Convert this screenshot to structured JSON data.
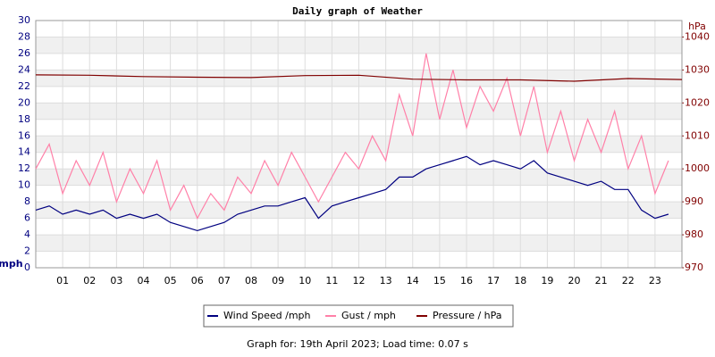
{
  "chart_data": {
    "type": "line",
    "title": "Daily graph of Weather",
    "ylabel": "mph",
    "y2label": "hPa",
    "footer": "Graph for: 19th April 2023; Load time: 0.07 s",
    "xlim": [
      0,
      24
    ],
    "xticks": [
      {
        "value": 1,
        "label": "01"
      },
      {
        "value": 2,
        "label": "02"
      },
      {
        "value": 3,
        "label": "03"
      },
      {
        "value": 4,
        "label": "04"
      },
      {
        "value": 5,
        "label": "05"
      },
      {
        "value": 6,
        "label": "06"
      },
      {
        "value": 7,
        "label": "07"
      },
      {
        "value": 8,
        "label": "08"
      },
      {
        "value": 9,
        "label": "09"
      },
      {
        "value": 10,
        "label": "10"
      },
      {
        "value": 11,
        "label": "11"
      },
      {
        "value": 12,
        "label": "12"
      },
      {
        "value": 13,
        "label": "13"
      },
      {
        "value": 14,
        "label": "14"
      },
      {
        "value": 15,
        "label": "15"
      },
      {
        "value": 16,
        "label": "16"
      },
      {
        "value": 17,
        "label": "17"
      },
      {
        "value": 18,
        "label": "18"
      },
      {
        "value": 19,
        "label": "19"
      },
      {
        "value": 20,
        "label": "20"
      },
      {
        "value": 21,
        "label": "21"
      },
      {
        "value": 22,
        "label": "22"
      },
      {
        "value": 23,
        "label": "23"
      }
    ],
    "ylim": [
      0,
      30
    ],
    "yticks": [
      0,
      2,
      4,
      6,
      8,
      10,
      12,
      14,
      16,
      18,
      20,
      22,
      24,
      26,
      28,
      30
    ],
    "y2lim": [
      970,
      1045
    ],
    "y2ticks": [
      970,
      980,
      990,
      1000,
      1010,
      1020,
      1030,
      1040
    ],
    "grid": true,
    "series": [
      {
        "name": "Gust / mph",
        "color": "#ff80a8",
        "x": [
          0,
          0.5,
          1,
          1.5,
          2,
          2.5,
          3,
          3.5,
          4,
          4.5,
          5,
          5.5,
          6,
          6.5,
          7,
          7.5,
          8,
          8.5,
          9,
          9.5,
          10,
          10.5,
          11,
          11.5,
          12,
          12.5,
          13,
          13.5,
          14,
          14.5,
          15,
          15.5,
          16,
          16.5,
          17,
          17.5,
          18,
          18.5,
          19,
          19.5,
          20,
          20.5,
          21,
          21.5,
          22,
          22.5,
          23,
          23.5
        ],
        "values": [
          12,
          15,
          9,
          13,
          10,
          14,
          8,
          12,
          9,
          13,
          7,
          10,
          6,
          9,
          7,
          11,
          9,
          13,
          10,
          14,
          11,
          8,
          11,
          14,
          12,
          16,
          13,
          21,
          16,
          26,
          18,
          24,
          17,
          22,
          19,
          23,
          16,
          22,
          14,
          19,
          13,
          18,
          14,
          19,
          12,
          16,
          9,
          13
        ]
      },
      {
        "name": "Wind Speed /mph",
        "color": "#000080",
        "x": [
          0,
          0.5,
          1,
          1.5,
          2,
          2.5,
          3,
          3.5,
          4,
          4.5,
          5,
          5.5,
          6,
          6.5,
          7,
          7.5,
          8,
          8.5,
          9,
          9.5,
          10,
          10.5,
          11,
          11.5,
          12,
          12.5,
          13,
          13.5,
          14,
          14.5,
          15,
          15.5,
          16,
          16.5,
          17,
          17.5,
          18,
          18.5,
          19,
          19.5,
          20,
          20.5,
          21,
          21.5,
          22,
          22.5,
          23,
          23.5
        ],
        "values": [
          7,
          7.5,
          6.5,
          7,
          6.5,
          7,
          6,
          6.5,
          6,
          6.5,
          5.5,
          5,
          4.5,
          5,
          5.5,
          6.5,
          7,
          7.5,
          7.5,
          8,
          8.5,
          6,
          7.5,
          8,
          8.5,
          9,
          9.5,
          11,
          11,
          12,
          12.5,
          13,
          13.5,
          12.5,
          13,
          12.5,
          12,
          13,
          11.5,
          11,
          10.5,
          10,
          10.5,
          9.5,
          9.5,
          7,
          6,
          6.5
        ]
      },
      {
        "name": "Pressure / hPa",
        "color": "#800000",
        "axis": "y2",
        "x": [
          0,
          2,
          4,
          6,
          8,
          10,
          12,
          14,
          16,
          18,
          20,
          22,
          24
        ],
        "values": [
          1028.5,
          1028.4,
          1028,
          1027.8,
          1027.7,
          1028.3,
          1028.4,
          1027.2,
          1027,
          1027,
          1026.6,
          1027.4,
          1027.1
        ]
      }
    ],
    "legend": "bottom"
  }
}
